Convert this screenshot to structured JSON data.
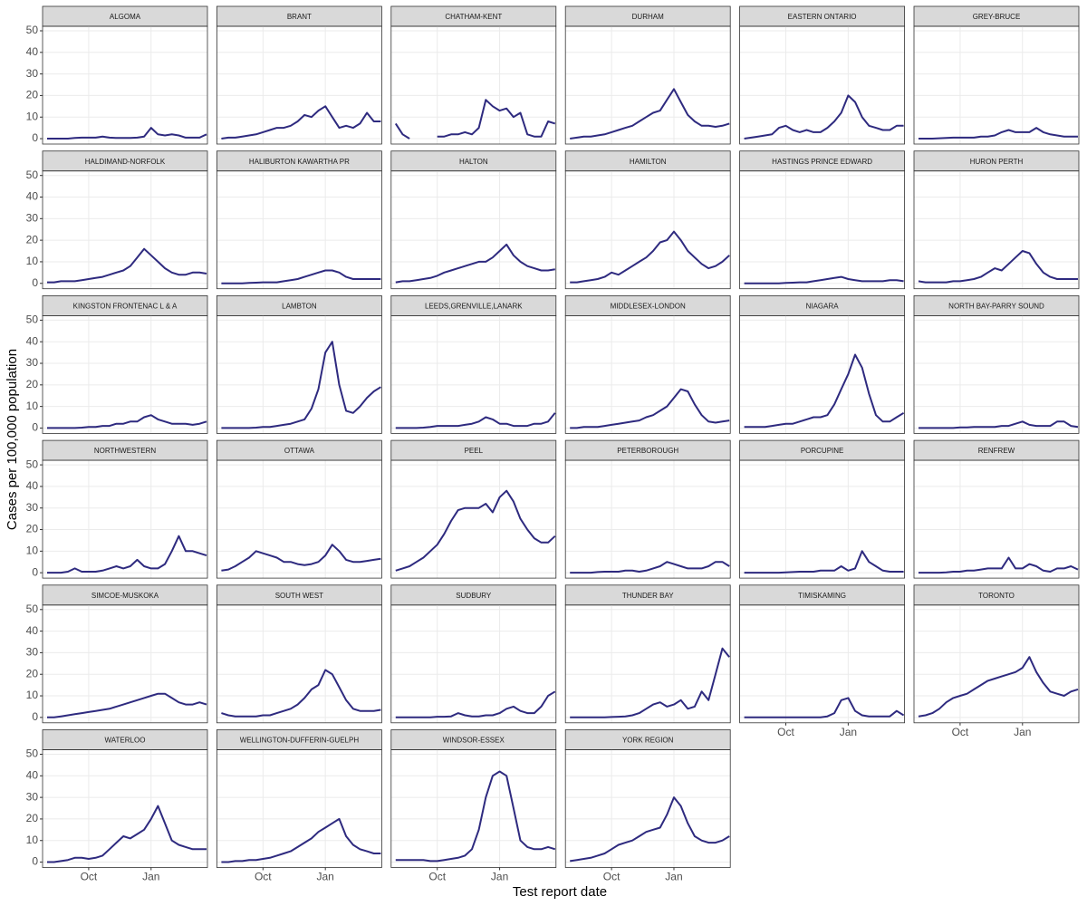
{
  "chart_data": {
    "type": "line",
    "y_label": "Cases per 100,000 population",
    "x_label": "Test report date",
    "categories": [
      null,
      null,
      null,
      null,
      null,
      null,
      "Oct",
      null,
      null,
      null,
      null,
      null,
      null,
      null,
      null,
      "Jan",
      null,
      null,
      null,
      null,
      null,
      null,
      null,
      null
    ],
    "ylim": [
      -2.5,
      52.1
    ],
    "yticks": [
      0,
      10,
      20,
      30,
      40,
      50
    ],
    "grid": true,
    "color": "#2e2a7f",
    "facets": [
      {
        "name": "ALGOMA",
        "values": [
          0,
          0,
          0,
          0,
          0.3,
          0.5,
          0.5,
          0.5,
          1,
          0.5,
          0.3,
          0.3,
          0.3,
          0.5,
          1,
          5,
          2,
          1.5,
          2,
          1.5,
          0.5,
          0.5,
          0.5,
          2
        ]
      },
      {
        "name": "BRANT",
        "values": [
          0,
          0.5,
          0.5,
          1,
          1.5,
          2,
          3,
          4,
          5,
          5,
          6,
          8,
          11,
          10,
          13,
          15,
          10,
          5,
          6,
          5,
          7,
          12,
          8,
          8
        ]
      },
      {
        "name": "CHATHAM-KENT",
        "values": [
          7,
          2,
          0,
          null,
          null,
          null,
          1,
          1,
          2,
          2,
          3,
          2,
          5,
          18,
          15,
          13,
          14,
          10,
          12,
          2,
          1,
          1,
          8,
          7
        ]
      },
      {
        "name": "DURHAM",
        "values": [
          0,
          0.5,
          1,
          1,
          1.5,
          2,
          3,
          4,
          5,
          6,
          8,
          10,
          12,
          13,
          18,
          23,
          17,
          11,
          8,
          6,
          6,
          5.5,
          6,
          7
        ]
      },
      {
        "name": "EASTERN ONTARIO",
        "values": [
          0,
          0.5,
          1,
          1.5,
          2,
          5,
          6,
          4,
          3,
          4,
          3,
          3,
          5,
          8,
          12,
          20,
          17,
          10,
          6,
          5,
          4,
          4,
          6,
          6
        ]
      },
      {
        "name": "GREY-BRUCE",
        "values": [
          0,
          0,
          0,
          0.2,
          0.3,
          0.5,
          0.5,
          0.5,
          0.5,
          1,
          1,
          1.5,
          3,
          4,
          3,
          3,
          3,
          5,
          3,
          2,
          1.5,
          1,
          1,
          1
        ]
      },
      {
        "name": "HALDIMAND-NORFOLK",
        "values": [
          0.5,
          0.5,
          1,
          1,
          1,
          1.5,
          2,
          2.5,
          3,
          4,
          5,
          6,
          8,
          12,
          16,
          13,
          10,
          7,
          5,
          4,
          4,
          5,
          5,
          4.5
        ]
      },
      {
        "name": "HALIBURTON KAWARTHA PR",
        "values": [
          0,
          0,
          0,
          0,
          0.2,
          0.3,
          0.5,
          0.5,
          0.5,
          1,
          1.5,
          2,
          3,
          4,
          5,
          6,
          6,
          5,
          3,
          2,
          2,
          2,
          2,
          2
        ]
      },
      {
        "name": "HALTON",
        "values": [
          0.5,
          1,
          1,
          1.5,
          2,
          2.5,
          3.5,
          5,
          6,
          7,
          8,
          9,
          10,
          10,
          12,
          15,
          18,
          13,
          10,
          8,
          7,
          6,
          6,
          6.5
        ]
      },
      {
        "name": "HAMILTON",
        "values": [
          0.5,
          0.5,
          1,
          1.5,
          2,
          3,
          5,
          4,
          6,
          8,
          10,
          12,
          15,
          19,
          20,
          24,
          20,
          15,
          12,
          9,
          7,
          8,
          10,
          13
        ]
      },
      {
        "name": "HASTINGS PRINCE EDWARD",
        "values": [
          0,
          0,
          0,
          0,
          0,
          0,
          0.2,
          0.3,
          0.5,
          0.5,
          1,
          1.5,
          2,
          2.5,
          3,
          2,
          1.5,
          1,
          1,
          1,
          1,
          1.5,
          1.5,
          1
        ]
      },
      {
        "name": "HURON PERTH",
        "values": [
          1,
          0.5,
          0.5,
          0.5,
          0.5,
          1,
          1,
          1.5,
          2,
          3,
          5,
          7,
          6,
          9,
          12,
          15,
          14,
          9,
          5,
          3,
          2,
          2,
          2,
          2
        ]
      },
      {
        "name": "KINGSTON FRONTENAC L & A",
        "values": [
          0,
          0,
          0,
          0,
          0,
          0.2,
          0.5,
          0.5,
          1,
          1,
          2,
          2,
          3,
          3,
          5,
          6,
          4,
          3,
          2,
          2,
          2,
          1.5,
          2,
          3
        ]
      },
      {
        "name": "LAMBTON",
        "values": [
          0,
          0,
          0,
          0,
          0,
          0.2,
          0.5,
          0.5,
          1,
          1.5,
          2,
          3,
          4,
          9,
          18,
          35,
          40,
          20,
          8,
          7,
          10,
          14,
          17,
          19
        ]
      },
      {
        "name": "LEEDS,GRENVILLE,LANARK",
        "values": [
          0,
          0,
          0,
          0,
          0.2,
          0.5,
          1,
          1,
          1,
          1,
          1.5,
          2,
          3,
          5,
          4,
          2,
          2,
          1,
          1,
          1,
          2,
          2,
          3,
          7
        ]
      },
      {
        "name": "MIDDLESEX-LONDON",
        "values": [
          0,
          0,
          0.5,
          0.5,
          0.5,
          1,
          1.5,
          2,
          2.5,
          3,
          3.5,
          5,
          6,
          8,
          10,
          14,
          18,
          17,
          11,
          6,
          3,
          2.5,
          3,
          3.5
        ]
      },
      {
        "name": "NIAGARA",
        "values": [
          0.5,
          0.5,
          0.5,
          0.5,
          1,
          1.5,
          2,
          2,
          3,
          4,
          5,
          5,
          6,
          11,
          18,
          25,
          34,
          28,
          16,
          6,
          3,
          3,
          5,
          7
        ]
      },
      {
        "name": "NORTH BAY-PARRY SOUND",
        "values": [
          0,
          0,
          0,
          0,
          0,
          0,
          0.3,
          0.3,
          0.5,
          0.5,
          0.5,
          0.5,
          1,
          1,
          2,
          3,
          1.5,
          1,
          1,
          1,
          3,
          3,
          1,
          0.5
        ]
      },
      {
        "name": "NORTHWESTERN",
        "values": [
          0,
          0,
          0,
          0.5,
          2,
          0.5,
          0.5,
          0.5,
          1,
          2,
          3,
          2,
          3,
          6,
          3,
          2,
          2,
          4,
          10,
          17,
          10,
          10,
          9,
          8
        ]
      },
      {
        "name": "OTTAWA",
        "values": [
          1,
          1.5,
          3,
          5,
          7,
          10,
          9,
          8,
          7,
          5,
          5,
          4,
          3.5,
          4,
          5,
          8,
          13,
          10,
          6,
          5,
          5,
          5.5,
          6,
          6.5
        ]
      },
      {
        "name": "PEEL",
        "values": [
          1,
          2,
          3,
          5,
          7,
          10,
          13,
          18,
          24,
          29,
          30,
          30,
          30,
          32,
          28,
          35,
          38,
          33,
          25,
          20,
          16,
          14,
          14,
          17
        ]
      },
      {
        "name": "PETERBOROUGH",
        "values": [
          0,
          0,
          0,
          0,
          0.3,
          0.5,
          0.5,
          0.5,
          1,
          1,
          0.5,
          1,
          2,
          3,
          5,
          4,
          3,
          2,
          2,
          2,
          3,
          5,
          5,
          3
        ]
      },
      {
        "name": "PORCUPINE",
        "values": [
          0,
          0,
          0,
          0,
          0,
          0,
          0.2,
          0.3,
          0.5,
          0.5,
          0.5,
          1,
          1,
          1,
          3,
          1,
          2,
          10,
          5,
          3,
          1,
          0.5,
          0.5,
          0.5
        ]
      },
      {
        "name": "RENFREW",
        "values": [
          0,
          0,
          0,
          0,
          0.2,
          0.5,
          0.5,
          1,
          1,
          1.5,
          2,
          2,
          2,
          7,
          2,
          2,
          4,
          3,
          1,
          0.5,
          2,
          2,
          3,
          1.5
        ]
      },
      {
        "name": "SIMCOE-MUSKOKA",
        "values": [
          0,
          0,
          0.5,
          1,
          1.5,
          2,
          2.5,
          3,
          3.5,
          4,
          5,
          6,
          7,
          8,
          9,
          10,
          11,
          11,
          9,
          7,
          6,
          6,
          7,
          6
        ]
      },
      {
        "name": "SOUTH WEST",
        "values": [
          2,
          1,
          0.5,
          0.5,
          0.5,
          0.5,
          1,
          1,
          2,
          3,
          4,
          6,
          9,
          13,
          15,
          22,
          20,
          14,
          8,
          4,
          3,
          3,
          3,
          3.5
        ]
      },
      {
        "name": "SUDBURY",
        "values": [
          0,
          0,
          0,
          0,
          0,
          0,
          0.3,
          0.3,
          0.5,
          2,
          1,
          0.5,
          0.5,
          1,
          1,
          2,
          4,
          5,
          3,
          2,
          2,
          5,
          10,
          12
        ]
      },
      {
        "name": "THUNDER BAY",
        "values": [
          0,
          0,
          0,
          0,
          0,
          0,
          0.2,
          0.3,
          0.5,
          1,
          2,
          4,
          6,
          7,
          5,
          6,
          8,
          4,
          5,
          12,
          8,
          20,
          32,
          28
        ]
      },
      {
        "name": "TIMISKAMING",
        "values": [
          0,
          0,
          0,
          0,
          0,
          0,
          0,
          0,
          0,
          0,
          0,
          0,
          0.5,
          2,
          8,
          9,
          3,
          1,
          0.5,
          0.5,
          0.5,
          0.5,
          3,
          1
        ]
      },
      {
        "name": "TORONTO",
        "values": [
          0.5,
          1,
          2,
          4,
          7,
          9,
          10,
          11,
          13,
          15,
          17,
          18,
          19,
          20,
          21,
          23,
          28,
          21,
          16,
          12,
          11,
          10,
          12,
          13
        ]
      },
      {
        "name": "WATERLOO",
        "values": [
          0,
          0,
          0.5,
          1,
          2,
          2,
          1.5,
          2,
          3,
          6,
          9,
          12,
          11,
          13,
          15,
          20,
          26,
          18,
          10,
          8,
          7,
          6,
          6,
          6
        ]
      },
      {
        "name": "WELLINGTON-DUFFERIN-GUELPH",
        "values": [
          0,
          0,
          0.5,
          0.5,
          1,
          1,
          1.5,
          2,
          3,
          4,
          5,
          7,
          9,
          11,
          14,
          16,
          18,
          20,
          12,
          8,
          6,
          5,
          4,
          4
        ]
      },
      {
        "name": "WINDSOR-ESSEX",
        "values": [
          1,
          1,
          1,
          1,
          1,
          0.5,
          0.5,
          1,
          1.5,
          2,
          3,
          6,
          15,
          30,
          40,
          42,
          40,
          25,
          10,
          7,
          6,
          6,
          7,
          6
        ]
      },
      {
        "name": "YORK REGION",
        "values": [
          0.5,
          1,
          1.5,
          2,
          3,
          4,
          6,
          8,
          9,
          10,
          12,
          14,
          15,
          16,
          22,
          30,
          26,
          18,
          12,
          10,
          9,
          9,
          10,
          12
        ]
      }
    ]
  }
}
